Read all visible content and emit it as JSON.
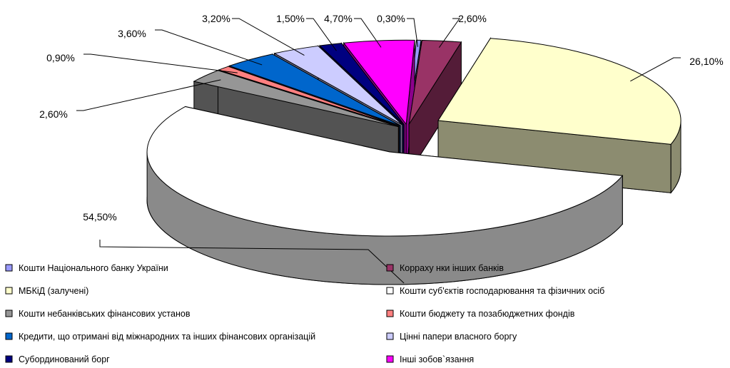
{
  "chart_data": {
    "type": "pie",
    "style": "3d-exploded",
    "legend_position": "bottom",
    "slices": [
      {
        "name": "Кошти Національного банку України",
        "value": 0.3,
        "label": "0,30%",
        "color": "#9999ff"
      },
      {
        "name": "Корраху нки інших банків",
        "value": 2.6,
        "label": "2,60%",
        "color": "#993366"
      },
      {
        "name": "МБКіД (залучені)",
        "value": 26.1,
        "label": "26,10%",
        "color": "#ffffcc"
      },
      {
        "name": "Кошти суб'єктів господарювання та фізичних осіб",
        "value": 54.5,
        "label": "54,50%",
        "color": "#ffffff"
      },
      {
        "name": "Кошти небанківських фінансових установ",
        "value": 2.6,
        "label": "2,60%",
        "color": "#969696"
      },
      {
        "name": "Кошти бюджету та позабюджетних фондів",
        "value": 0.9,
        "label": "0,90%",
        "color": "#ff8080"
      },
      {
        "name": "Кредити, що отримані від міжнародних та інших фінансових організацій",
        "value": 3.6,
        "label": "3,60%",
        "color": "#0066cc"
      },
      {
        "name": "Цінні папери власного боргу",
        "value": 3.2,
        "label": "3,20%",
        "color": "#ccccff"
      },
      {
        "name": "Субординований борг",
        "value": 1.5,
        "label": "1,50%",
        "color": "#000080"
      },
      {
        "name": "Інші зобов`язання",
        "value": 4.7,
        "label": "4,70%",
        "color": "#ff00ff"
      }
    ]
  }
}
